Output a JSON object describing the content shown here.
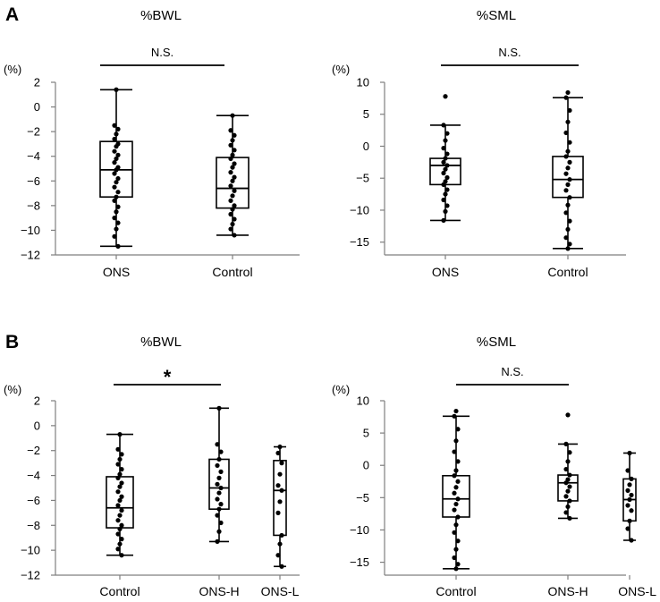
{
  "panels": [
    {
      "letter": "A"
    },
    {
      "letter": "B"
    }
  ],
  "colors": {
    "ink": "#000000",
    "axis": "#7f7f7f",
    "box": "#000000"
  },
  "chart_data": [
    {
      "type": "box",
      "panel": "A",
      "title": "%BWL",
      "ylabel": "(%)",
      "ylim": [
        -12,
        2
      ],
      "yticks": [
        2,
        0,
        -2,
        -4,
        -6,
        -8,
        -10,
        -12
      ],
      "ytick_labels": [
        "2",
        "0",
        "−2",
        "−4",
        "−6",
        "−8",
        "−10",
        "−12"
      ],
      "categories": [
        "ONS",
        "Control"
      ],
      "boxes": [
        {
          "min": -11.3,
          "q1": -7.3,
          "median": -5.1,
          "q3": -2.8,
          "max": 1.4
        },
        {
          "min": -10.4,
          "q1": -8.2,
          "median": -6.6,
          "q3": -4.1,
          "max": -0.7
        }
      ],
      "points": [
        [
          1.4,
          -1.5,
          -1.8,
          -2.2,
          -2.6,
          -3.0,
          -3.2,
          -3.6,
          -3.9,
          -4.2,
          -4.5,
          -4.9,
          -5.1,
          -5.4,
          -5.8,
          -6.1,
          -6.5,
          -6.9,
          -7.3,
          -7.6,
          -8.1,
          -8.5,
          -9.0,
          -9.4,
          -9.9,
          -10.5,
          -11.3
        ],
        [
          -0.7,
          -1.9,
          -2.3,
          -2.7,
          -3.1,
          -3.5,
          -3.9,
          -4.2,
          -4.6,
          -4.9,
          -5.3,
          -5.7,
          -6.0,
          -6.4,
          -6.8,
          -7.2,
          -7.6,
          -8.0,
          -8.3,
          -8.7,
          -9.1,
          -9.5,
          -9.9,
          -10.4
        ]
      ],
      "comparison": {
        "from": 0,
        "to": 1,
        "label": "N.S."
      }
    },
    {
      "type": "box",
      "panel": "A",
      "title": "%SML",
      "ylabel": "(%)",
      "ylim": [
        -17,
        10
      ],
      "yticks": [
        10,
        5,
        0,
        -5,
        -10,
        -15
      ],
      "ytick_labels": [
        "10",
        "5",
        "0",
        "−5",
        "−10",
        "−15"
      ],
      "categories": [
        "ONS",
        "Control"
      ],
      "boxes": [
        {
          "min": -11.6,
          "q1": -6.0,
          "median": -3.0,
          "q3": -1.9,
          "max": 3.3
        },
        {
          "min": -16.0,
          "q1": -8.0,
          "median": -5.2,
          "q3": -1.6,
          "max": 7.6
        }
      ],
      "points": [
        [
          7.8,
          3.3,
          2.0,
          0.9,
          -0.3,
          -1.2,
          -1.9,
          -2.5,
          -3.0,
          -3.6,
          -4.2,
          -4.9,
          -5.5,
          -6.0,
          -6.8,
          -7.5,
          -8.4,
          -9.3,
          -10.2,
          -11.6
        ],
        [
          8.4,
          7.6,
          5.6,
          3.8,
          2.1,
          0.6,
          -0.8,
          -1.6,
          -2.5,
          -3.4,
          -4.3,
          -5.2,
          -6.0,
          -6.9,
          -8.0,
          -9.2,
          -10.4,
          -11.7,
          -13.0,
          -14.3,
          -15.3,
          -16.0
        ]
      ],
      "comparison": {
        "from": 0,
        "to": 1,
        "label": "N.S."
      }
    },
    {
      "type": "box",
      "panel": "B",
      "title": "%BWL",
      "ylabel": "(%)",
      "ylim": [
        -12,
        2
      ],
      "yticks": [
        2,
        0,
        -2,
        -4,
        -6,
        -8,
        -10,
        -12
      ],
      "ytick_labels": [
        "2",
        "0",
        "−2",
        "−4",
        "−6",
        "−8",
        "−10",
        "−12"
      ],
      "categories": [
        "Control",
        "ONS-H",
        "ONS-L"
      ],
      "boxes": [
        {
          "min": -10.4,
          "q1": -8.2,
          "median": -6.6,
          "q3": -4.1,
          "max": -0.7
        },
        {
          "min": -9.3,
          "q1": -6.7,
          "median": -5.0,
          "q3": -2.7,
          "max": 1.4
        },
        {
          "min": -11.3,
          "q1": -8.8,
          "median": -5.2,
          "q3": -2.8,
          "max": -1.7
        }
      ],
      "points": [
        [
          -0.7,
          -1.9,
          -2.3,
          -2.7,
          -3.1,
          -3.5,
          -3.9,
          -4.2,
          -4.6,
          -4.9,
          -5.3,
          -5.7,
          -6.0,
          -6.4,
          -6.8,
          -7.2,
          -7.6,
          -8.0,
          -8.3,
          -8.7,
          -9.1,
          -9.5,
          -9.9,
          -10.4
        ],
        [
          1.4,
          -1.5,
          -2.1,
          -2.7,
          -3.2,
          -3.7,
          -4.2,
          -4.7,
          -5.0,
          -5.4,
          -5.9,
          -6.3,
          -6.7,
          -7.2,
          -7.8,
          -8.5,
          -9.3
        ],
        [
          -1.7,
          -2.2,
          -3.0,
          -3.9,
          -4.8,
          -5.2,
          -6.1,
          -7.0,
          -8.8,
          -9.5,
          -10.4,
          -11.3
        ]
      ],
      "comparison": {
        "from": 0,
        "to": 1,
        "label": "*"
      }
    },
    {
      "type": "box",
      "panel": "B",
      "title": "%SML",
      "ylabel": "(%)",
      "ylim": [
        -17,
        10
      ],
      "yticks": [
        10,
        5,
        0,
        -5,
        -10,
        -15
      ],
      "ytick_labels": [
        "10",
        "5",
        "0",
        "−5",
        "−10",
        "−15"
      ],
      "categories": [
        "Control",
        "ONS-H",
        "ONS-L"
      ],
      "boxes": [
        {
          "min": -16.0,
          "q1": -8.0,
          "median": -5.2,
          "q3": -1.6,
          "max": 7.6
        },
        {
          "min": -8.2,
          "q1": -5.5,
          "median": -2.7,
          "q3": -1.5,
          "max": 3.3
        },
        {
          "min": -11.6,
          "q1": -8.6,
          "median": -5.3,
          "q3": -2.1,
          "max": 1.9
        }
      ],
      "points": [
        [
          8.4,
          7.6,
          5.6,
          3.8,
          2.1,
          0.6,
          -0.8,
          -1.6,
          -2.5,
          -3.4,
          -4.3,
          -5.2,
          -6.0,
          -6.9,
          -8.0,
          -9.2,
          -10.4,
          -11.7,
          -13.0,
          -14.3,
          -15.3,
          -16.0
        ],
        [
          7.8,
          3.3,
          2.0,
          0.6,
          -0.6,
          -1.5,
          -2.2,
          -2.7,
          -3.3,
          -4.0,
          -4.8,
          -5.5,
          -6.4,
          -7.3,
          -8.2
        ],
        [
          1.9,
          -0.8,
          -2.1,
          -3.0,
          -3.9,
          -4.6,
          -5.3,
          -6.2,
          -7.0,
          -8.6,
          -9.8,
          -11.6
        ]
      ],
      "comparison": {
        "from": 0,
        "to": 1,
        "label": "N.S."
      }
    }
  ]
}
